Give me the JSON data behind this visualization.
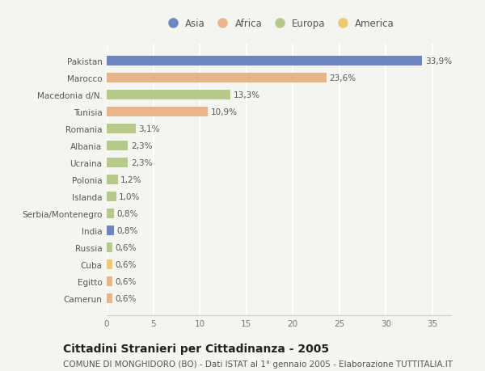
{
  "countries": [
    "Pakistan",
    "Marocco",
    "Macedonia d/N.",
    "Tunisia",
    "Romania",
    "Albania",
    "Ucraina",
    "Polonia",
    "Islanda",
    "Serbia/Montenegro",
    "India",
    "Russia",
    "Cuba",
    "Egitto",
    "Camerun"
  ],
  "values": [
    33.9,
    23.6,
    13.3,
    10.9,
    3.1,
    2.3,
    2.3,
    1.2,
    1.0,
    0.8,
    0.8,
    0.6,
    0.6,
    0.6,
    0.6
  ],
  "labels": [
    "33,9%",
    "23,6%",
    "13,3%",
    "10,9%",
    "3,1%",
    "2,3%",
    "2,3%",
    "1,2%",
    "1,0%",
    "0,8%",
    "0,8%",
    "0,6%",
    "0,6%",
    "0,6%",
    "0,6%"
  ],
  "continents": [
    "Asia",
    "Africa",
    "Europa",
    "Africa",
    "Europa",
    "Europa",
    "Europa",
    "Europa",
    "Europa",
    "Europa",
    "Asia",
    "Europa",
    "America",
    "Africa",
    "Africa"
  ],
  "continent_colors": {
    "Asia": "#6b86c0",
    "Africa": "#e8b48a",
    "Europa": "#b5c98a",
    "America": "#f0c870"
  },
  "legend_order": [
    "Asia",
    "Africa",
    "Europa",
    "America"
  ],
  "title": "Cittadini Stranieri per Cittadinanza - 2005",
  "subtitle": "COMUNE DI MONGHIDORO (BO) - Dati ISTAT al 1° gennaio 2005 - Elaborazione TUTTITALIA.IT",
  "xlim": [
    0,
    37
  ],
  "xticks": [
    0,
    5,
    10,
    15,
    20,
    25,
    30,
    35
  ],
  "background_color": "#f5f5f0",
  "grid_color": "#ffffff",
  "bar_height": 0.55,
  "title_fontsize": 10,
  "subtitle_fontsize": 7.5,
  "label_fontsize": 7.5,
  "tick_fontsize": 7.5,
  "legend_fontsize": 8.5
}
